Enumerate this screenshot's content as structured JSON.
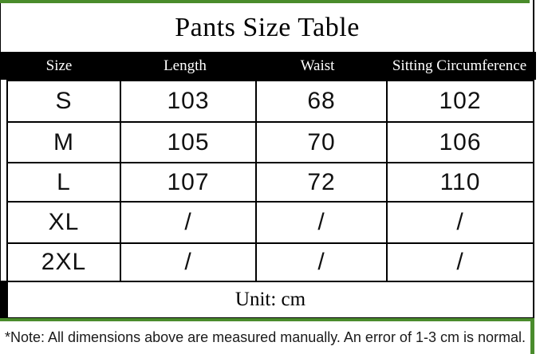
{
  "title": "Pants Size Table",
  "header": [
    "Size",
    "Length",
    "Waist",
    "Sitting Circumference"
  ],
  "rows": [
    [
      "S",
      "103",
      "68",
      "102"
    ],
    [
      "M",
      "105",
      "70",
      "106"
    ],
    [
      "L",
      "107",
      "72",
      "110"
    ],
    [
      "XL",
      "/",
      "/",
      "/"
    ],
    [
      "2XL",
      "/",
      "/",
      "/"
    ]
  ],
  "unit_label": "Unit: cm",
  "note": "*Note: All dimensions above are measured manually. An error of 1-3 cm is normal.",
  "colors": {
    "accent_green": "#4a8c2c",
    "header_bg": "#000000",
    "header_text": "#ffffff",
    "body_text": "#000000"
  },
  "chart_data": {
    "type": "table",
    "title": "Pants Size Table",
    "columns": [
      "Size",
      "Length",
      "Waist",
      "Sitting Circumference"
    ],
    "rows": [
      [
        "S",
        "103",
        "68",
        "102"
      ],
      [
        "M",
        "105",
        "70",
        "106"
      ],
      [
        "L",
        "107",
        "72",
        "110"
      ],
      [
        "XL",
        "/",
        "/",
        "/"
      ],
      [
        "2XL",
        "/",
        "/",
        "/"
      ]
    ],
    "unit": "cm",
    "note": "*Note: All dimensions above are measured manually. An error of 1-3 cm is normal."
  }
}
